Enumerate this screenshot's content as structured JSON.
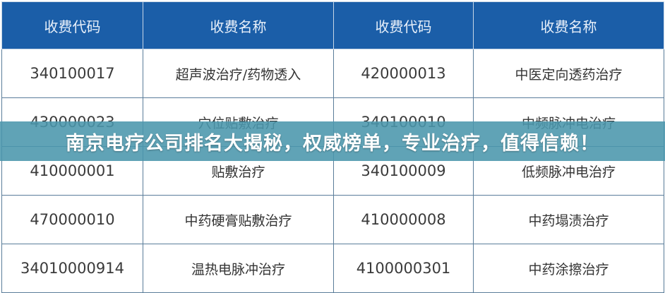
{
  "table": {
    "headers": [
      "收费代码",
      "收费名称",
      "收费代码",
      "收费名称"
    ],
    "rows": [
      [
        "340100017",
        "超声波治疗/药物透入",
        "420000013",
        "中医定向透药治疗"
      ],
      [
        "430000023",
        "穴位贴敷治疗",
        "340100010",
        "中频脉冲电治疗"
      ],
      [
        "410000001",
        "贴敷治疗",
        "340100009",
        "低频脉冲电治疗"
      ],
      [
        "470000010",
        "中药硬膏贴敷治疗",
        "410000008",
        "中药塌渍治疗"
      ],
      [
        "34010000914",
        "温热电脉冲治疗",
        "4100000301",
        "中药涂擦治疗"
      ]
    ]
  },
  "banner": {
    "title": "南京电疗公司排名大揭秘，权威榜单，专业治疗，值得信赖！"
  },
  "colors": {
    "header_bg": "#1b5ea8",
    "banner_bg": "#4a96ac"
  }
}
